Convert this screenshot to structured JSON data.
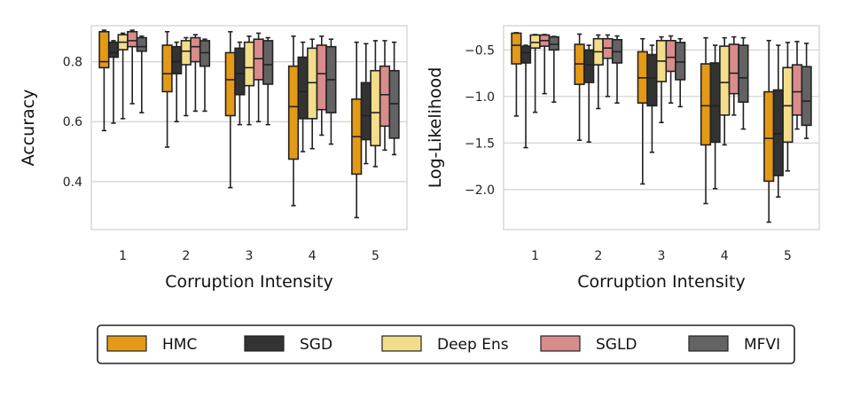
{
  "colors": {
    "HMC": "#e49a16",
    "SGD": "#333333",
    "Deep Ens": "#f2dd8a",
    "SGLD": "#d98c8c",
    "MFVI": "#636363",
    "grid": "#d0d0d0",
    "frame": "#cfcfcf"
  },
  "legend": {
    "placement": "bottom-center",
    "entries": [
      "HMC",
      "SGD",
      "Deep Ens",
      "SGLD",
      "MFVI"
    ]
  },
  "chart_data": [
    {
      "type": "box",
      "xlabel": "Corruption Intensity",
      "ylabel": "Accuracy",
      "categories": [
        "1",
        "2",
        "3",
        "4",
        "5"
      ],
      "ylim": [
        0.24,
        0.92
      ],
      "yticks": [
        0.4,
        0.6,
        0.8
      ],
      "ytick_labels": [
        "0.4",
        "0.6",
        "0.8"
      ],
      "grid": true,
      "series": [
        {
          "name": "HMC",
          "boxes": [
            {
              "wl": 0.57,
              "q1": 0.78,
              "med": 0.8,
              "q3": 0.9,
              "wh": 0.905
            },
            {
              "wl": 0.515,
              "q1": 0.7,
              "med": 0.76,
              "q3": 0.855,
              "wh": 0.9
            },
            {
              "wl": 0.38,
              "q1": 0.62,
              "med": 0.74,
              "q3": 0.83,
              "wh": 0.9
            },
            {
              "wl": 0.32,
              "q1": 0.475,
              "med": 0.65,
              "q3": 0.785,
              "wh": 0.885
            },
            {
              "wl": 0.28,
              "q1": 0.425,
              "med": 0.55,
              "q3": 0.675,
              "wh": 0.865
            }
          ]
        },
        {
          "name": "SGD",
          "boxes": [
            {
              "wl": 0.595,
              "q1": 0.815,
              "med": 0.83,
              "q3": 0.865,
              "wh": 0.87
            },
            {
              "wl": 0.6,
              "q1": 0.76,
              "med": 0.8,
              "q3": 0.85,
              "wh": 0.865
            },
            {
              "wl": 0.59,
              "q1": 0.69,
              "med": 0.76,
              "q3": 0.845,
              "wh": 0.865
            },
            {
              "wl": 0.5,
              "q1": 0.61,
              "med": 0.7,
              "q3": 0.815,
              "wh": 0.865
            },
            {
              "wl": 0.46,
              "q1": 0.54,
              "med": 0.62,
              "q3": 0.73,
              "wh": 0.86
            }
          ]
        },
        {
          "name": "Deep Ens",
          "boxes": [
            {
              "wl": 0.61,
              "q1": 0.84,
              "med": 0.865,
              "q3": 0.89,
              "wh": 0.895
            },
            {
              "wl": 0.62,
              "q1": 0.79,
              "med": 0.835,
              "q3": 0.87,
              "wh": 0.88
            },
            {
              "wl": 0.59,
              "q1": 0.72,
              "med": 0.78,
              "q3": 0.865,
              "wh": 0.885
            },
            {
              "wl": 0.51,
              "q1": 0.61,
              "med": 0.73,
              "q3": 0.845,
              "wh": 0.875
            },
            {
              "wl": 0.45,
              "q1": 0.52,
              "med": 0.63,
              "q3": 0.77,
              "wh": 0.87
            }
          ]
        },
        {
          "name": "SGLD",
          "boxes": [
            {
              "wl": 0.66,
              "q1": 0.85,
              "med": 0.87,
              "q3": 0.9,
              "wh": 0.905
            },
            {
              "wl": 0.635,
              "q1": 0.8,
              "med": 0.85,
              "q3": 0.88,
              "wh": 0.89
            },
            {
              "wl": 0.6,
              "q1": 0.74,
              "med": 0.81,
              "q3": 0.875,
              "wh": 0.895
            },
            {
              "wl": 0.555,
              "q1": 0.64,
              "med": 0.76,
              "q3": 0.855,
              "wh": 0.885
            },
            {
              "wl": 0.505,
              "q1": 0.585,
              "med": 0.69,
              "q3": 0.785,
              "wh": 0.87
            }
          ]
        },
        {
          "name": "MFVI",
          "boxes": [
            {
              "wl": 0.63,
              "q1": 0.835,
              "med": 0.85,
              "q3": 0.88,
              "wh": 0.885
            },
            {
              "wl": 0.635,
              "q1": 0.785,
              "med": 0.83,
              "q3": 0.87,
              "wh": 0.875
            },
            {
              "wl": 0.59,
              "q1": 0.725,
              "med": 0.79,
              "q3": 0.87,
              "wh": 0.88
            },
            {
              "wl": 0.525,
              "q1": 0.63,
              "med": 0.74,
              "q3": 0.85,
              "wh": 0.875
            },
            {
              "wl": 0.49,
              "q1": 0.545,
              "med": 0.66,
              "q3": 0.77,
              "wh": 0.865
            }
          ]
        }
      ]
    },
    {
      "type": "box",
      "xlabel": "Corruption Intensity",
      "ylabel": "Log-Likelihood",
      "categories": [
        "1",
        "2",
        "3",
        "4",
        "5"
      ],
      "ylim": [
        -2.43,
        -0.24
      ],
      "yticks": [
        -2.0,
        -1.5,
        -1.0,
        -0.5
      ],
      "ytick_labels": [
        "−2.0",
        "−1.5",
        "−1.0",
        "−0.5"
      ],
      "grid": true,
      "series": [
        {
          "name": "HMC",
          "boxes": [
            {
              "wl": -1.21,
              "q1": -0.65,
              "med": -0.45,
              "q3": -0.32,
              "wh": -0.315
            },
            {
              "wl": -1.47,
              "q1": -0.87,
              "med": -0.65,
              "q3": -0.44,
              "wh": -0.33
            },
            {
              "wl": -1.94,
              "q1": -1.07,
              "med": -0.8,
              "q3": -0.52,
              "wh": -0.38
            },
            {
              "wl": -2.15,
              "q1": -1.52,
              "med": -1.1,
              "q3": -0.65,
              "wh": -0.37
            },
            {
              "wl": -2.35,
              "q1": -1.91,
              "med": -1.45,
              "q3": -0.95,
              "wh": -0.4
            }
          ]
        },
        {
          "name": "SGD",
          "boxes": [
            {
              "wl": -1.55,
              "q1": -0.64,
              "med": -0.53,
              "q3": -0.46,
              "wh": -0.45
            },
            {
              "wl": -1.49,
              "q1": -0.85,
              "med": -0.66,
              "q3": -0.5,
              "wh": -0.45
            },
            {
              "wl": -1.6,
              "q1": -1.1,
              "med": -0.8,
              "q3": -0.55,
              "wh": -0.45
            },
            {
              "wl": -1.99,
              "q1": -1.49,
              "med": -1.1,
              "q3": -0.64,
              "wh": -0.45
            },
            {
              "wl": -2.08,
              "q1": -1.85,
              "med": -1.4,
              "q3": -0.93,
              "wh": -0.45
            }
          ]
        },
        {
          "name": "Deep Ens",
          "boxes": [
            {
              "wl": -1.17,
              "q1": -0.48,
              "med": -0.42,
              "q3": -0.34,
              "wh": -0.335
            },
            {
              "wl": -1.13,
              "q1": -0.66,
              "med": -0.52,
              "q3": -0.38,
              "wh": -0.34
            },
            {
              "wl": -1.28,
              "q1": -0.84,
              "med": -0.62,
              "q3": -0.4,
              "wh": -0.36
            },
            {
              "wl": -1.52,
              "q1": -1.2,
              "med": -0.85,
              "q3": -0.46,
              "wh": -0.37
            },
            {
              "wl": -1.8,
              "q1": -1.49,
              "med": -1.1,
              "q3": -0.69,
              "wh": -0.42
            }
          ]
        },
        {
          "name": "SGLD",
          "boxes": [
            {
              "wl": -0.97,
              "q1": -0.46,
              "med": -0.4,
              "q3": -0.34,
              "wh": -0.335
            },
            {
              "wl": -1.0,
              "q1": -0.59,
              "med": -0.48,
              "q3": -0.38,
              "wh": -0.34
            },
            {
              "wl": -1.07,
              "q1": -0.73,
              "med": -0.58,
              "q3": -0.4,
              "wh": -0.35
            },
            {
              "wl": -1.2,
              "q1": -0.97,
              "med": -0.75,
              "q3": -0.44,
              "wh": -0.36
            },
            {
              "wl": -1.35,
              "q1": -1.2,
              "med": -0.95,
              "q3": -0.66,
              "wh": -0.41
            }
          ]
        },
        {
          "name": "MFVI",
          "boxes": [
            {
              "wl": -1.06,
              "q1": -0.5,
              "med": -0.44,
              "q3": -0.36,
              "wh": -0.355
            },
            {
              "wl": -1.07,
              "q1": -0.64,
              "med": -0.52,
              "q3": -0.39,
              "wh": -0.35
            },
            {
              "wl": -1.11,
              "q1": -0.82,
              "med": -0.63,
              "q3": -0.42,
              "wh": -0.38
            },
            {
              "wl": -1.35,
              "q1": -1.06,
              "med": -0.8,
              "q3": -0.45,
              "wh": -0.37
            },
            {
              "wl": -1.45,
              "q1": -1.31,
              "med": -1.05,
              "q3": -0.68,
              "wh": -0.43
            }
          ]
        }
      ]
    }
  ]
}
